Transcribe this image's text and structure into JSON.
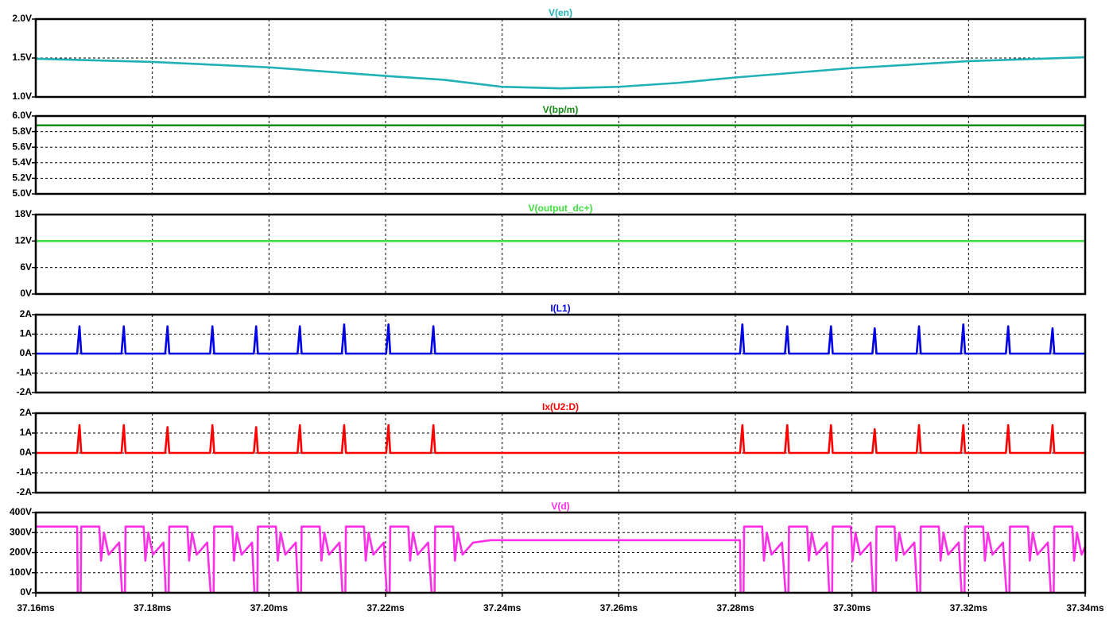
{
  "chart_data": [
    {
      "type": "line",
      "title": "V(en)",
      "color": "#1fb0b8",
      "x": [
        37.16,
        37.18,
        37.2,
        37.22,
        37.23,
        37.24,
        37.25,
        37.26,
        37.27,
        37.28,
        37.3,
        37.32,
        37.34
      ],
      "values": [
        1.49,
        1.45,
        1.38,
        1.27,
        1.22,
        1.13,
        1.11,
        1.13,
        1.18,
        1.25,
        1.37,
        1.46,
        1.51
      ],
      "ylim": [
        1,
        2
      ],
      "yticks": [
        {
          "value": 1,
          "label": "1.0V"
        },
        {
          "value": 1.5,
          "label": "1.5V"
        },
        {
          "value": 2,
          "label": "2.0V"
        }
      ],
      "grid": true
    },
    {
      "type": "line",
      "title": "V(bp/m)",
      "color": "#168c16",
      "x": [
        37.16,
        37.34
      ],
      "values": [
        5.88,
        5.88
      ],
      "ylim": [
        5,
        6
      ],
      "yticks": [
        {
          "value": 5,
          "label": "5.0V"
        },
        {
          "value": 5.2,
          "label": "5.2V"
        },
        {
          "value": 5.4,
          "label": "5.4V"
        },
        {
          "value": 5.6,
          "label": "5.6V"
        },
        {
          "value": 5.8,
          "label": "5.8V"
        },
        {
          "value": 6,
          "label": "6.0V"
        }
      ],
      "grid": true
    },
    {
      "type": "line",
      "title": "V(output_dc+)",
      "color": "#3ee03e",
      "x": [
        37.16,
        37.34
      ],
      "values": [
        12,
        12
      ],
      "ylim": [
        0,
        18
      ],
      "yticks": [
        {
          "value": 0,
          "label": "0V"
        },
        {
          "value": 6,
          "label": "6V"
        },
        {
          "value": 12,
          "label": "12V"
        },
        {
          "value": 18,
          "label": "18V"
        }
      ],
      "grid": true
    },
    {
      "type": "line",
      "title": "I(L1)",
      "color": "#0000e6",
      "x": [
        37.16,
        37.1671,
        37.1675,
        37.1678,
        37.1747,
        37.1751,
        37.1754,
        37.1822,
        37.1826,
        37.1829,
        37.1899,
        37.1903,
        37.1906,
        37.1974,
        37.1978,
        37.1981,
        37.2049,
        37.2053,
        37.2056,
        37.2125,
        37.2129,
        37.2132,
        37.2201,
        37.2205,
        37.2208,
        37.2278,
        37.2282,
        37.2285,
        37.2808,
        37.2812,
        37.2815,
        37.2885,
        37.2889,
        37.2892,
        37.296,
        37.2964,
        37.2967,
        37.3035,
        37.3039,
        37.3042,
        37.3111,
        37.3115,
        37.3118,
        37.3187,
        37.3191,
        37.3194,
        37.3264,
        37.3268,
        37.3271,
        37.334,
        37.3344,
        37.3347,
        37.34
      ],
      "values": [
        0,
        0,
        1.4,
        0,
        0,
        1.4,
        0,
        0,
        1.4,
        0,
        0,
        1.4,
        0,
        0,
        1.4,
        0,
        0,
        1.4,
        0,
        0,
        1.5,
        0,
        0,
        1.5,
        0,
        0,
        1.4,
        0,
        0,
        1.5,
        0,
        0,
        1.4,
        0,
        0,
        1.4,
        0,
        0,
        1.3,
        0,
        0,
        1.4,
        0,
        0,
        1.5,
        0,
        0,
        1.4,
        0,
        0,
        1.3,
        0,
        0
      ],
      "ylim": [
        -2,
        2
      ],
      "yticks": [
        {
          "value": -2,
          "label": "-2A"
        },
        {
          "value": -1,
          "label": "-1A"
        },
        {
          "value": 0,
          "label": "0A"
        },
        {
          "value": 1,
          "label": "1A"
        },
        {
          "value": 2,
          "label": "2A"
        }
      ],
      "grid": true
    },
    {
      "type": "line",
      "title": "Ix(U2:D)",
      "color": "#ff0000",
      "x": [
        37.16,
        37.1671,
        37.1675,
        37.1678,
        37.1747,
        37.1751,
        37.1754,
        37.1822,
        37.1826,
        37.1829,
        37.1899,
        37.1903,
        37.1906,
        37.1974,
        37.1978,
        37.1981,
        37.2049,
        37.2053,
        37.2056,
        37.2125,
        37.2129,
        37.2132,
        37.2201,
        37.2205,
        37.2208,
        37.2278,
        37.2282,
        37.2285,
        37.2808,
        37.2812,
        37.2815,
        37.2885,
        37.2889,
        37.2892,
        37.296,
        37.2964,
        37.2967,
        37.3035,
        37.3039,
        37.3042,
        37.3111,
        37.3115,
        37.3118,
        37.3187,
        37.3191,
        37.3194,
        37.3264,
        37.3268,
        37.3271,
        37.334,
        37.3344,
        37.3347,
        37.34
      ],
      "values": [
        0,
        0,
        1.4,
        0,
        0,
        1.4,
        0,
        0,
        1.3,
        0,
        0,
        1.4,
        0,
        0,
        1.3,
        0,
        0,
        1.4,
        0,
        0,
        1.4,
        0,
        0,
        1.4,
        0,
        0,
        1.4,
        0,
        0,
        1.4,
        0,
        0,
        1.4,
        0,
        0,
        1.4,
        0,
        0,
        1.2,
        0,
        0,
        1.4,
        0,
        0,
        1.4,
        0,
        0,
        1.4,
        0,
        0,
        1.4,
        0,
        0
      ],
      "ylim": [
        -2,
        2
      ],
      "yticks": [
        {
          "value": -2,
          "label": "-2A"
        },
        {
          "value": -1,
          "label": "-1A"
        },
        {
          "value": 0,
          "label": "0A"
        },
        {
          "value": 1,
          "label": "1A"
        },
        {
          "value": 2,
          "label": "2A"
        }
      ],
      "grid": true
    },
    {
      "type": "line",
      "title": "V(d)",
      "color": "#ff2ee8",
      "x": [
        37.16,
        37.1671,
        37.1672,
        37.1677,
        37.1678,
        37.1709,
        37.1712,
        37.1717,
        37.1725,
        37.1743,
        37.1748,
        37.1753,
        37.1754,
        37.1785,
        37.1788,
        37.1793,
        37.1801,
        37.1819,
        37.1823,
        37.1828,
        37.1829,
        37.186,
        37.1863,
        37.1868,
        37.1876,
        37.1894,
        37.19,
        37.1905,
        37.1906,
        37.1937,
        37.194,
        37.1945,
        37.1953,
        37.1971,
        37.1975,
        37.198,
        37.1981,
        37.2012,
        37.2015,
        37.202,
        37.2028,
        37.2046,
        37.205,
        37.2055,
        37.2056,
        37.2087,
        37.209,
        37.2095,
        37.2103,
        37.2121,
        37.2126,
        37.2131,
        37.2132,
        37.2163,
        37.2166,
        37.2171,
        37.2179,
        37.2197,
        37.2202,
        37.2207,
        37.2208,
        37.2239,
        37.2242,
        37.2247,
        37.2255,
        37.2273,
        37.2279,
        37.2284,
        37.2285,
        37.2316,
        37.2319,
        37.2324,
        37.2332,
        37.235,
        37.238,
        37.2808,
        37.2809,
        37.2814,
        37.2815,
        37.2846,
        37.2849,
        37.2854,
        37.2862,
        37.288,
        37.2886,
        37.2891,
        37.2892,
        37.2923,
        37.2926,
        37.2931,
        37.2939,
        37.2957,
        37.2961,
        37.2966,
        37.2967,
        37.2998,
        37.3001,
        37.3006,
        37.3014,
        37.3032,
        37.3036,
        37.3041,
        37.3042,
        37.3073,
        37.3076,
        37.3081,
        37.3089,
        37.3107,
        37.3112,
        37.3117,
        37.3118,
        37.3149,
        37.3152,
        37.3157,
        37.3165,
        37.3183,
        37.3188,
        37.3193,
        37.3194,
        37.3225,
        37.3228,
        37.3233,
        37.3241,
        37.3259,
        37.3265,
        37.327,
        37.3271,
        37.3302,
        37.3305,
        37.331,
        37.3318,
        37.3336,
        37.3341,
        37.3346,
        37.3347,
        37.3378,
        37.3381,
        37.3386,
        37.3394,
        37.34
      ],
      "values": [
        330,
        330,
        0,
        0,
        330,
        330,
        160,
        300,
        190,
        250,
        0,
        0,
        330,
        330,
        160,
        300,
        190,
        250,
        0,
        0,
        330,
        330,
        160,
        300,
        190,
        250,
        0,
        0,
        330,
        330,
        160,
        300,
        190,
        250,
        0,
        0,
        330,
        330,
        160,
        300,
        190,
        250,
        0,
        0,
        330,
        330,
        160,
        300,
        190,
        250,
        0,
        0,
        330,
        330,
        160,
        300,
        190,
        250,
        0,
        0,
        330,
        330,
        160,
        300,
        190,
        250,
        0,
        0,
        330,
        330,
        160,
        300,
        190,
        250,
        262,
        262,
        0,
        0,
        330,
        330,
        160,
        300,
        190,
        250,
        0,
        0,
        330,
        330,
        160,
        300,
        190,
        250,
        0,
        0,
        330,
        330,
        160,
        300,
        190,
        250,
        0,
        0,
        330,
        330,
        160,
        300,
        190,
        250,
        0,
        0,
        330,
        330,
        160,
        300,
        190,
        250,
        0,
        0,
        330,
        330,
        160,
        300,
        190,
        250,
        0,
        0,
        330,
        330,
        160,
        300,
        190,
        250,
        0,
        0,
        330,
        330,
        160,
        300,
        190,
        230
      ],
      "ylim": [
        0,
        400
      ],
      "yticks": [
        {
          "value": 0,
          "label": "0V"
        },
        {
          "value": 100,
          "label": "100V"
        },
        {
          "value": 200,
          "label": "200V"
        },
        {
          "value": 300,
          "label": "300V"
        },
        {
          "value": 400,
          "label": "400V"
        }
      ],
      "grid": true,
      "xlim": [
        37.16,
        37.34
      ],
      "xticks": [
        {
          "value": 37.16,
          "label": "37.16ms"
        },
        {
          "value": 37.18,
          "label": "37.18ms"
        },
        {
          "value": 37.2,
          "label": "37.20ms"
        },
        {
          "value": 37.22,
          "label": "37.22ms"
        },
        {
          "value": 37.24,
          "label": "37.24ms"
        },
        {
          "value": 37.26,
          "label": "37.26ms"
        },
        {
          "value": 37.28,
          "label": "37.28ms"
        },
        {
          "value": 37.3,
          "label": "37.30ms"
        },
        {
          "value": 37.32,
          "label": "37.32ms"
        },
        {
          "value": 37.34,
          "label": "37.34ms"
        }
      ]
    }
  ]
}
